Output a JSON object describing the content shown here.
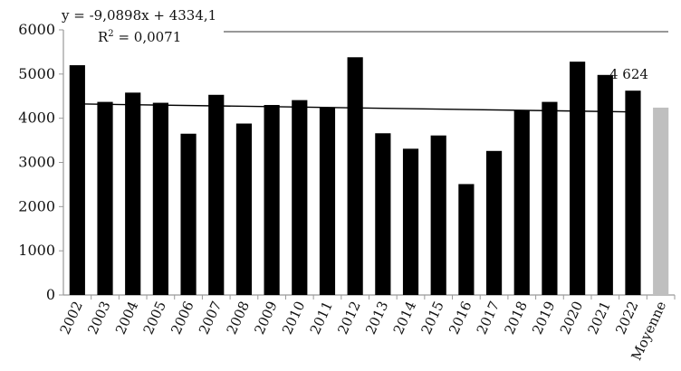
{
  "chart_data": {
    "type": "bar",
    "categories": [
      "2002",
      "2003",
      "2004",
      "2005",
      "2006",
      "2007",
      "2008",
      "2009",
      "2010",
      "2011",
      "2012",
      "2013",
      "2014",
      "2015",
      "2016",
      "2017",
      "2018",
      "2019",
      "2020",
      "2021",
      "2022",
      "Moyenne"
    ],
    "values": [
      5200,
      4370,
      4580,
      4350,
      3650,
      4530,
      3880,
      4300,
      4410,
      4250,
      5380,
      3660,
      3310,
      3610,
      2510,
      3260,
      4180,
      4370,
      5280,
      4980,
      4624,
      4240
    ],
    "colors": {
      "bars": "#000000",
      "average_bar": "#bfbfbf",
      "trendline": "#000000",
      "axis": "#999999"
    },
    "ylim": [
      0,
      6000
    ],
    "yticks": [
      "0",
      "1000",
      "2000",
      "3000",
      "4000",
      "5000",
      "6000"
    ],
    "grid": false,
    "legend": "none",
    "trendline": {
      "equation": "y = -9,0898x + 4334,1",
      "r2_prefix": "R",
      "r2_sup": "2",
      "r2_value": " = 0,0071",
      "slope": -9.0898,
      "intercept": 4334.1
    },
    "data_label": {
      "category": "2022",
      "text": "4 624"
    }
  }
}
